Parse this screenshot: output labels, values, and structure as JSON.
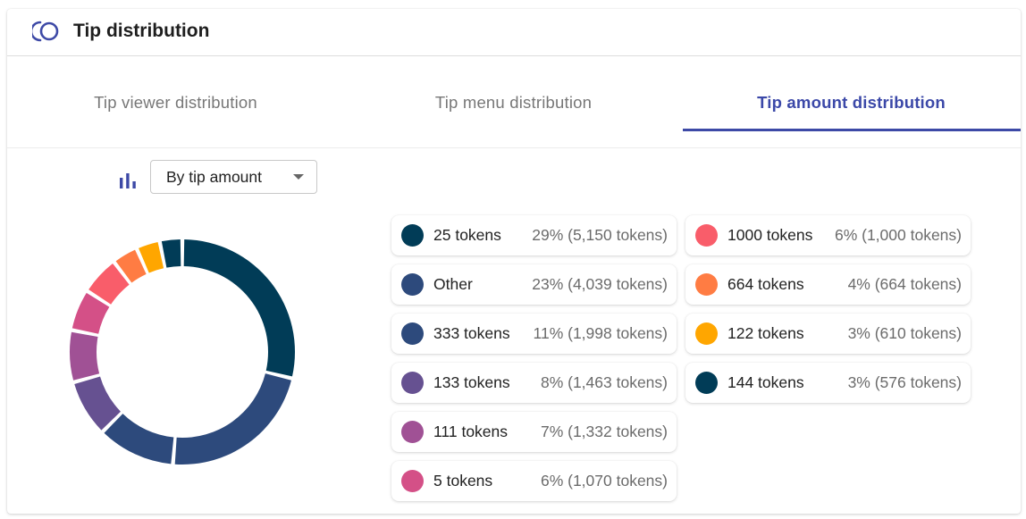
{
  "header": {
    "title": "Tip distribution",
    "icon": "donut-logo-icon",
    "accent": "#3d49a6"
  },
  "tabs": [
    {
      "label": "Tip viewer distribution",
      "active": false
    },
    {
      "label": "Tip menu distribution",
      "active": false
    },
    {
      "label": "Tip amount distribution",
      "active": true
    }
  ],
  "controls": {
    "chart_icon": "bar-chart-icon",
    "select_value": "By tip amount"
  },
  "chart_data": {
    "type": "pie",
    "style": "donut",
    "unit": "tokens",
    "slices": [
      {
        "label": "25 tokens",
        "percent": 29,
        "value": 5150,
        "display": "29% (5,150 tokens)",
        "color": "#013c57"
      },
      {
        "label": "Other",
        "percent": 23,
        "value": 4039,
        "display": "23% (4,039 tokens)",
        "color": "#2d4a7c"
      },
      {
        "label": "333 tokens",
        "percent": 11,
        "value": 1998,
        "display": "11% (1,998 tokens)",
        "color": "#2d4a7c"
      },
      {
        "label": "133 tokens",
        "percent": 8,
        "value": 1463,
        "display": "8% (1,463 tokens)",
        "color": "#665191"
      },
      {
        "label": "111 tokens",
        "percent": 7,
        "value": 1332,
        "display": "7% (1,332 tokens)",
        "color": "#a05195"
      },
      {
        "label": "5 tokens",
        "percent": 6,
        "value": 1070,
        "display": "6% (1,070 tokens)",
        "color": "#d45087"
      },
      {
        "label": "1000 tokens",
        "percent": 6,
        "value": 1000,
        "display": "6% (1,000 tokens)",
        "color": "#f95d6a"
      },
      {
        "label": "664 tokens",
        "percent": 4,
        "value": 664,
        "display": "4% (664 tokens)",
        "color": "#ff7c43"
      },
      {
        "label": "122 tokens",
        "percent": 3,
        "value": 610,
        "display": "3% (610 tokens)",
        "color": "#ffa600"
      },
      {
        "label": "144 tokens",
        "percent": 3,
        "value": 576,
        "display": "3% (576 tokens)",
        "color": "#013c57"
      }
    ]
  }
}
